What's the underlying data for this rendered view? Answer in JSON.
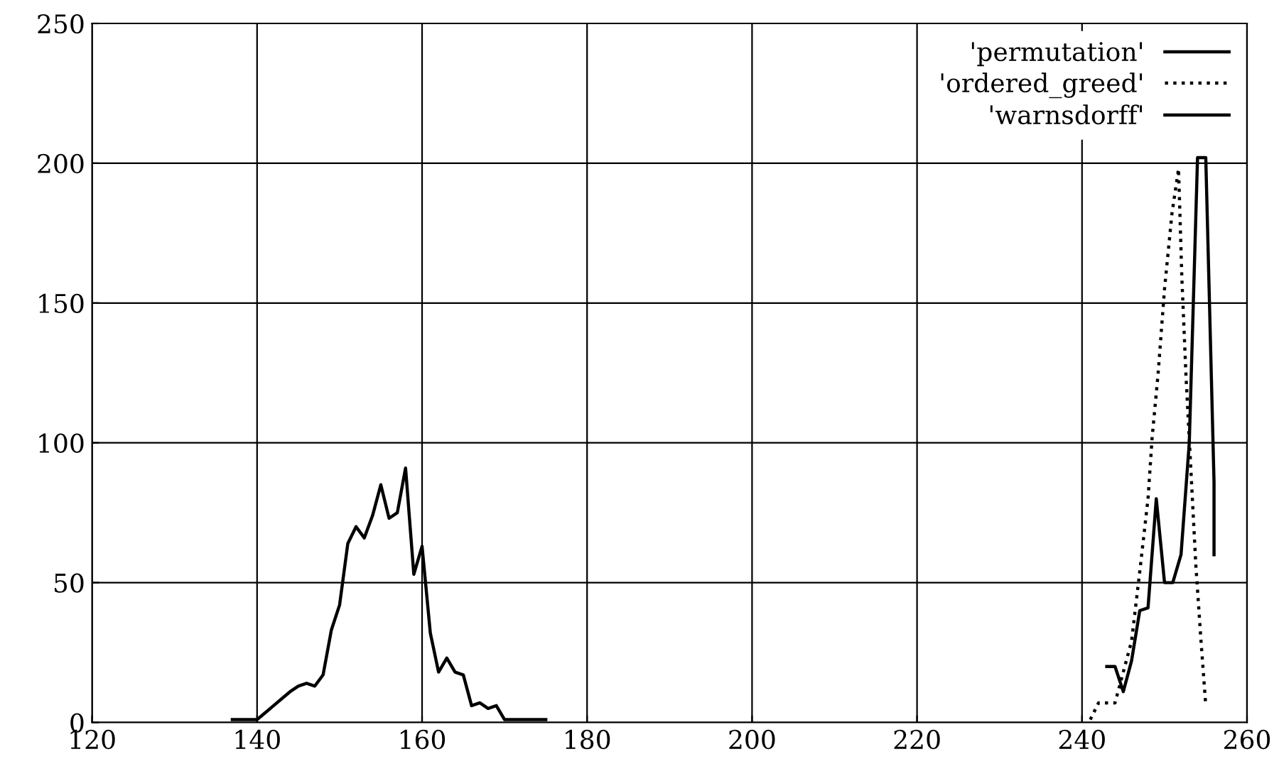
{
  "chart_data": {
    "type": "line",
    "xlim": [
      120,
      260
    ],
    "xticks": [
      120,
      140,
      160,
      180,
      200,
      220,
      240,
      260
    ],
    "ylim": [
      0,
      250
    ],
    "yticks": [
      0,
      50,
      100,
      150,
      200,
      250
    ],
    "grid": true,
    "legend": "top right",
    "marker": "none",
    "series": [
      {
        "name": "'permutation'",
        "color": "#000000",
        "line_style": "solid",
        "x": [
          137,
          138,
          139,
          140,
          141,
          142,
          143,
          144,
          145,
          146,
          147,
          148,
          149,
          150,
          151,
          152,
          153,
          154,
          155,
          156,
          157,
          158,
          159,
          160,
          161,
          162,
          163,
          164,
          165,
          166,
          167,
          168,
          169,
          170,
          171,
          172,
          173,
          174,
          175
        ],
        "values": [
          1,
          1,
          1,
          1,
          3.5,
          6,
          8.5,
          11,
          13,
          14,
          13,
          17,
          33,
          42,
          64,
          70,
          66,
          74,
          85,
          73,
          75,
          91,
          53,
          63,
          32,
          18,
          23,
          18,
          17,
          6,
          7,
          5,
          6,
          1,
          1,
          1,
          1,
          1,
          1
        ]
      },
      {
        "name": "'ordered_greed'",
        "color": "#000000",
        "line_style": "dotted",
        "x": [
          241,
          242,
          244,
          246,
          247,
          248,
          248.5,
          249.2,
          250,
          250.9,
          251.7,
          252.1,
          252.6,
          253.2,
          253.8,
          254.4,
          255
        ],
        "values": [
          1,
          7,
          7,
          29,
          54,
          80,
          102,
          124,
          155,
          182,
          198,
          159,
          124,
          90,
          56,
          30,
          6
        ]
      },
      {
        "name": "'warnsdorff'",
        "color": "#000000",
        "line_style": "solid",
        "x": [
          243,
          244,
          245,
          246,
          247,
          248,
          249,
          250,
          251,
          252,
          253,
          254,
          255,
          256,
          256
        ],
        "values": [
          20,
          20,
          11,
          22,
          40,
          41,
          80,
          50,
          50,
          60,
          100,
          202,
          202,
          86,
          60
        ]
      }
    ]
  }
}
